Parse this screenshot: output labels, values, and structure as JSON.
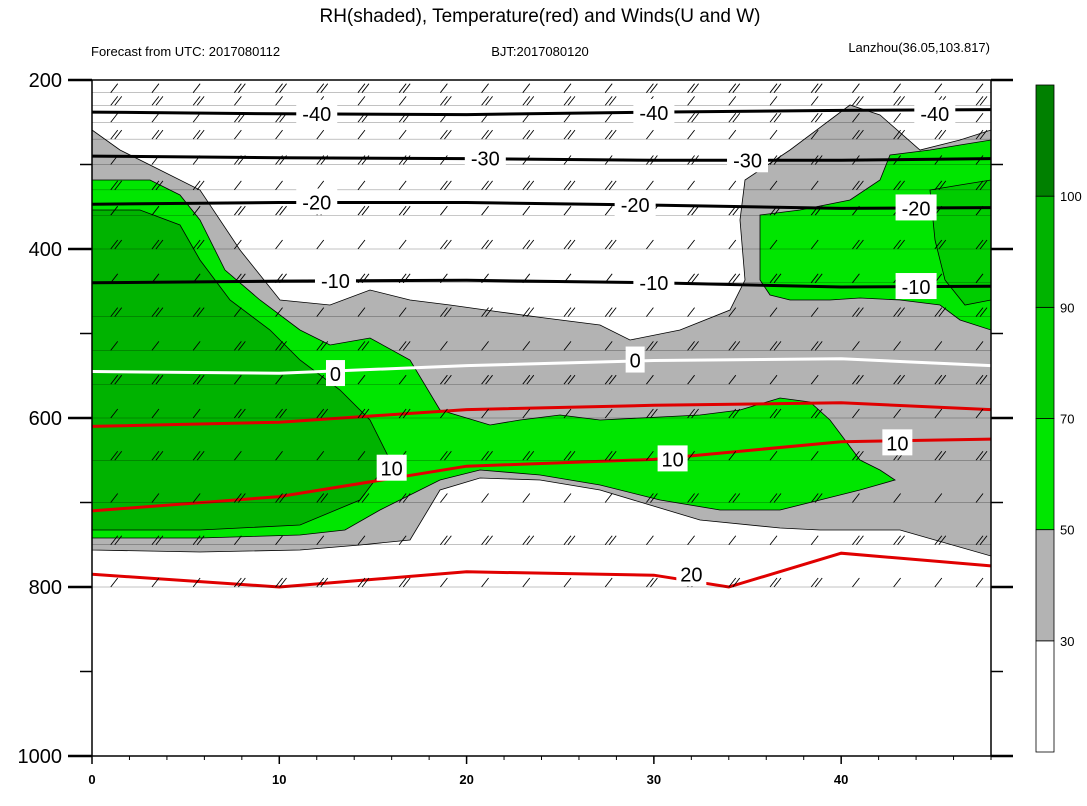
{
  "chart_data": {
    "type": "heatmap",
    "title": "RH(shaded), Temperature(red) and Winds(U and W)",
    "subtitle_left": "Forecast from UTC: 2017080112",
    "subtitle_center": "BJT:2017080120",
    "subtitle_right": "Lanzhou(36.05,103.817)",
    "xlabel": "",
    "ylabel": "",
    "xlim": [
      0,
      48
    ],
    "ylim": [
      1000,
      200
    ],
    "x_ticks": [
      "0",
      "10",
      "20",
      "30",
      "40"
    ],
    "y_ticks": [
      "200",
      "400",
      "600",
      "800",
      "1000"
    ],
    "colorbar": {
      "levels": [
        "30",
        "50",
        "70",
        "90",
        "100"
      ],
      "colors": [
        "#ffffff",
        "#b3b3b3",
        "#00e600",
        "#00cc00",
        "#00b300",
        "#008000"
      ]
    },
    "temperature_labels_black": [
      "-40",
      "-40",
      "-40",
      "-30",
      "-30",
      "-20",
      "-20",
      "-20",
      "-10",
      "-10",
      "-10"
    ],
    "temperature_labels_zero": [
      "0",
      "0"
    ],
    "temperature_labels_red": [
      "10",
      "10",
      "10",
      "20"
    ],
    "temperature_contours": [
      {
        "level": "-40",
        "color": "#000000",
        "points": [
          [
            0,
            238
          ],
          [
            10,
            240
          ],
          [
            20,
            241
          ],
          [
            30,
            238
          ],
          [
            40,
            236
          ],
          [
            48,
            235
          ]
        ]
      },
      {
        "level": "-30",
        "color": "#000000",
        "points": [
          [
            0,
            290
          ],
          [
            10,
            292
          ],
          [
            20,
            293
          ],
          [
            30,
            295
          ],
          [
            40,
            295
          ],
          [
            48,
            293
          ]
        ]
      },
      {
        "level": "-20",
        "color": "#000000",
        "points": [
          [
            0,
            347
          ],
          [
            10,
            345
          ],
          [
            20,
            345
          ],
          [
            30,
            348
          ],
          [
            40,
            352
          ],
          [
            48,
            351
          ]
        ]
      },
      {
        "level": "-10",
        "color": "#000000",
        "points": [
          [
            0,
            440
          ],
          [
            10,
            438
          ],
          [
            20,
            437
          ],
          [
            30,
            440
          ],
          [
            40,
            445
          ],
          [
            48,
            444
          ]
        ]
      },
      {
        "level": "0",
        "color": "#ffffff",
        "points": [
          [
            0,
            545
          ],
          [
            10,
            547
          ],
          [
            20,
            538
          ],
          [
            30,
            532
          ],
          [
            40,
            530
          ],
          [
            48,
            538
          ]
        ]
      },
      {
        "level": "10",
        "color": "#e00000",
        "points": [
          [
            0,
            610
          ],
          [
            10,
            605
          ],
          [
            20,
            590
          ],
          [
            30,
            585
          ],
          [
            40,
            582
          ],
          [
            48,
            590
          ]
        ]
      },
      {
        "level": "10",
        "color": "#e00000",
        "points": [
          [
            0,
            710
          ],
          [
            10,
            693
          ],
          [
            20,
            657
          ],
          [
            30,
            649
          ],
          [
            40,
            628
          ],
          [
            48,
            625
          ]
        ]
      },
      {
        "level": "20",
        "color": "#e00000",
        "points": [
          [
            0,
            785
          ],
          [
            10,
            800
          ],
          [
            20,
            782
          ],
          [
            30,
            786
          ],
          [
            34,
            800
          ],
          [
            40,
            760
          ],
          [
            48,
            775
          ]
        ]
      }
    ]
  }
}
